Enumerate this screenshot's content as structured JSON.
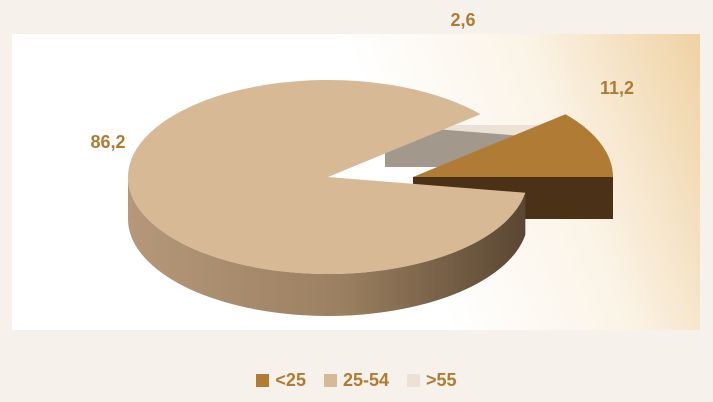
{
  "chart_data": {
    "type": "pie",
    "style": "3d-exploded",
    "categories": [
      "<25",
      "25-54",
      ">55"
    ],
    "values": [
      11.2,
      86.2,
      2.6
    ],
    "value_labels": [
      "11,2",
      "86,2",
      "2,6"
    ],
    "colors": [
      "#b07c35",
      "#d7b996",
      "#ece1d5"
    ],
    "title": "",
    "legend_position": "bottom"
  }
}
